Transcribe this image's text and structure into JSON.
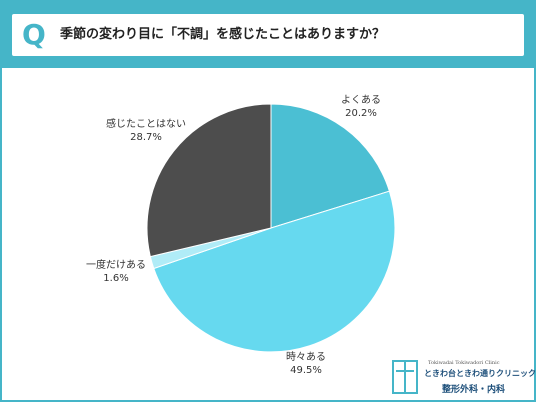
{
  "question": {
    "letter": "Q",
    "text": "季節の変わり目に「不調」を感じたことはありますか？"
  },
  "chart_data": {
    "type": "pie",
    "start_angle_deg": 0,
    "direction": "clockwise",
    "slices": [
      {
        "label": "よくある",
        "value_text": "20.2%",
        "value": 20.2,
        "color": "#4bbfd3"
      },
      {
        "label": "時々ある",
        "value_text": "49.5%",
        "value": 49.5,
        "color": "#66d9ef"
      },
      {
        "label": "一度だけある",
        "value_text": "1.6%",
        "value": 1.6,
        "color": "#b0ecf7"
      },
      {
        "label": "感じたことはない",
        "value_text": "28.7%",
        "value": 28.7,
        "color": "#4d4d4d"
      }
    ]
  },
  "logo": {
    "english": "Tokiwadai Tokiwadori Clinic",
    "name": "ときわ台ときわ通りクリニック",
    "department": "整形外科・内科"
  }
}
